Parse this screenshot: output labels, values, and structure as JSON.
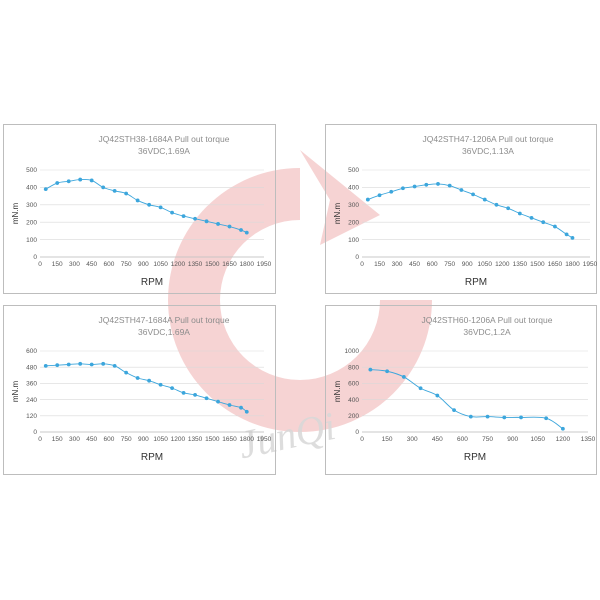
{
  "colors": {
    "series": "#3ca6dc",
    "grid": "#d9d9d9",
    "watermark": "#f3c4c4",
    "watermark_text": "#d8d8d8"
  },
  "watermark": {
    "logo_icon": "jq-swirl-logo",
    "text": "JunQi"
  },
  "chart_data": [
    {
      "type": "line",
      "title": "JQ42STH38-1684A Pull out torque",
      "subtitle": "36VDC,1.69A",
      "xlabel": "RPM",
      "ylabel": "mN.m",
      "xlim": [
        0,
        1950
      ],
      "ylim": [
        0,
        500
      ],
      "xticks": [
        0,
        150,
        300,
        450,
        600,
        750,
        900,
        1050,
        1200,
        1350,
        1500,
        1650,
        1800,
        1950
      ],
      "yticks": [
        0,
        100,
        200,
        300,
        400,
        500
      ],
      "grid": true,
      "series": [
        {
          "x": [
            50,
            150,
            250,
            350,
            450,
            550,
            650,
            750,
            850,
            950,
            1050,
            1150,
            1250,
            1350,
            1450,
            1550,
            1650,
            1750,
            1800
          ],
          "values": [
            390,
            425,
            435,
            445,
            440,
            400,
            380,
            365,
            325,
            300,
            285,
            255,
            235,
            220,
            205,
            190,
            175,
            155,
            140
          ]
        }
      ]
    },
    {
      "type": "line",
      "title": "JQ42STH47-1206A Pull out torque",
      "subtitle": "36VDC,1.13A",
      "xlabel": "RPM",
      "ylabel": "mN.m",
      "xlim": [
        0,
        1950
      ],
      "ylim": [
        0,
        500
      ],
      "xticks": [
        0,
        150,
        300,
        450,
        600,
        750,
        900,
        1050,
        1200,
        1350,
        1500,
        1650,
        1800,
        1950
      ],
      "yticks": [
        0,
        100,
        200,
        300,
        400,
        500
      ],
      "grid": true,
      "series": [
        {
          "x": [
            50,
            150,
            250,
            350,
            450,
            550,
            650,
            750,
            850,
            950,
            1050,
            1150,
            1250,
            1350,
            1450,
            1550,
            1650,
            1750,
            1800
          ],
          "values": [
            330,
            355,
            375,
            395,
            405,
            415,
            420,
            410,
            385,
            360,
            330,
            300,
            280,
            250,
            225,
            200,
            175,
            130,
            110
          ]
        }
      ]
    },
    {
      "type": "line",
      "title": "JQ42STH47-1684A Pull out torque",
      "subtitle": "36VDC,1.69A",
      "xlabel": "RPM",
      "ylabel": "mN.m",
      "xlim": [
        0,
        1950
      ],
      "ylim": [
        0,
        600
      ],
      "xticks": [
        0,
        150,
        300,
        450,
        600,
        750,
        900,
        1050,
        1200,
        1350,
        1500,
        1650,
        1800,
        1950
      ],
      "yticks": [
        0,
        120,
        240,
        360,
        480,
        600
      ],
      "grid": true,
      "series": [
        {
          "x": [
            50,
            150,
            250,
            350,
            450,
            550,
            650,
            750,
            850,
            950,
            1050,
            1150,
            1250,
            1350,
            1450,
            1550,
            1650,
            1750,
            1800
          ],
          "values": [
            490,
            495,
            500,
            505,
            500,
            505,
            490,
            440,
            400,
            380,
            350,
            325,
            290,
            275,
            250,
            225,
            200,
            180,
            150
          ]
        }
      ]
    },
    {
      "type": "line",
      "title": "JQ42STH60-1206A Pull out torque",
      "subtitle": "36VDC,1.2A",
      "xlabel": "RPM",
      "ylabel": "mN.m",
      "xlim": [
        0,
        1350
      ],
      "ylim": [
        0,
        1000
      ],
      "xticks": [
        0,
        150,
        300,
        450,
        600,
        750,
        900,
        1050,
        1200,
        1350
      ],
      "yticks": [
        0,
        200,
        400,
        600,
        800,
        1000
      ],
      "grid": true,
      "series": [
        {
          "x": [
            50,
            150,
            250,
            350,
            450,
            550,
            650,
            750,
            850,
            950,
            1100,
            1200
          ],
          "values": [
            770,
            750,
            680,
            540,
            450,
            270,
            190,
            190,
            180,
            180,
            170,
            40
          ]
        }
      ]
    }
  ]
}
